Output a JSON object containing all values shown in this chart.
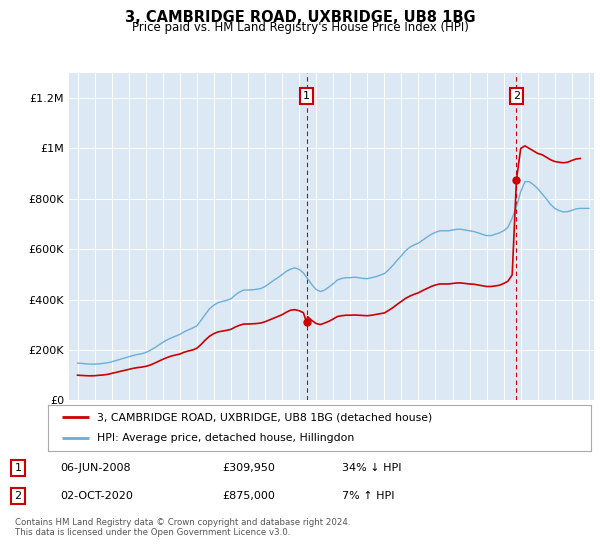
{
  "title": "3, CAMBRIDGE ROAD, UXBRIDGE, UB8 1BG",
  "subtitle": "Price paid vs. HM Land Registry's House Price Index (HPI)",
  "footer": "Contains HM Land Registry data © Crown copyright and database right 2024.\nThis data is licensed under the Open Government Licence v3.0.",
  "legend_entries": [
    "3, CAMBRIDGE ROAD, UXBRIDGE, UB8 1BG (detached house)",
    "HPI: Average price, detached house, Hillingdon"
  ],
  "sale1": {
    "label": "1",
    "date": "06-JUN-2008",
    "price": "£309,950",
    "change": "34% ↓ HPI"
  },
  "sale2": {
    "label": "2",
    "date": "02-OCT-2020",
    "price": "£875,000",
    "change": "7% ↑ HPI"
  },
  "hpi_color": "#6baed6",
  "price_color": "#cc0000",
  "background_color": "#dce9f5",
  "ylim": [
    0,
    1300000
  ],
  "yticks": [
    0,
    200000,
    400000,
    600000,
    800000,
    1000000,
    1200000
  ],
  "ytick_labels": [
    "£0",
    "£200K",
    "£400K",
    "£600K",
    "£800K",
    "£1M",
    "£1.2M"
  ],
  "year_start": 1995,
  "year_end": 2025,
  "sale1_year": 2008.44,
  "sale1_price": 309950,
  "sale2_year": 2020.75,
  "sale2_price": 875000,
  "hpi_data": [
    [
      1995.0,
      148000
    ],
    [
      1995.25,
      147000
    ],
    [
      1995.5,
      145000
    ],
    [
      1995.75,
      144000
    ],
    [
      1996.0,
      144000
    ],
    [
      1996.25,
      145000
    ],
    [
      1996.5,
      147000
    ],
    [
      1996.75,
      149000
    ],
    [
      1997.0,
      153000
    ],
    [
      1997.25,
      158000
    ],
    [
      1997.5,
      163000
    ],
    [
      1997.75,
      168000
    ],
    [
      1998.0,
      173000
    ],
    [
      1998.25,
      178000
    ],
    [
      1998.5,
      182000
    ],
    [
      1998.75,
      185000
    ],
    [
      1999.0,
      190000
    ],
    [
      1999.25,
      198000
    ],
    [
      1999.5,
      208000
    ],
    [
      1999.75,
      219000
    ],
    [
      2000.0,
      230000
    ],
    [
      2000.25,
      240000
    ],
    [
      2000.5,
      248000
    ],
    [
      2000.75,
      255000
    ],
    [
      2001.0,
      262000
    ],
    [
      2001.25,
      272000
    ],
    [
      2001.5,
      280000
    ],
    [
      2001.75,
      287000
    ],
    [
      2002.0,
      296000
    ],
    [
      2002.25,
      318000
    ],
    [
      2002.5,
      342000
    ],
    [
      2002.75,
      364000
    ],
    [
      2003.0,
      378000
    ],
    [
      2003.25,
      388000
    ],
    [
      2003.5,
      393000
    ],
    [
      2003.75,
      397000
    ],
    [
      2004.0,
      403000
    ],
    [
      2004.25,
      418000
    ],
    [
      2004.5,
      430000
    ],
    [
      2004.75,
      438000
    ],
    [
      2005.0,
      438000
    ],
    [
      2005.25,
      439000
    ],
    [
      2005.5,
      441000
    ],
    [
      2005.75,
      444000
    ],
    [
      2006.0,
      452000
    ],
    [
      2006.25,
      464000
    ],
    [
      2006.5,
      476000
    ],
    [
      2006.75,
      487000
    ],
    [
      2007.0,
      499000
    ],
    [
      2007.25,
      512000
    ],
    [
      2007.5,
      521000
    ],
    [
      2007.75,
      526000
    ],
    [
      2008.0,
      520000
    ],
    [
      2008.25,
      506000
    ],
    [
      2008.5,
      483000
    ],
    [
      2008.75,
      459000
    ],
    [
      2009.0,
      440000
    ],
    [
      2009.25,
      432000
    ],
    [
      2009.5,
      438000
    ],
    [
      2009.75,
      450000
    ],
    [
      2010.0,
      463000
    ],
    [
      2010.25,
      478000
    ],
    [
      2010.5,
      484000
    ],
    [
      2010.75,
      487000
    ],
    [
      2011.0,
      487000
    ],
    [
      2011.25,
      489000
    ],
    [
      2011.5,
      487000
    ],
    [
      2011.75,
      484000
    ],
    [
      2012.0,
      483000
    ],
    [
      2012.25,
      487000
    ],
    [
      2012.5,
      491000
    ],
    [
      2012.75,
      497000
    ],
    [
      2013.0,
      503000
    ],
    [
      2013.25,
      518000
    ],
    [
      2013.5,
      536000
    ],
    [
      2013.75,
      556000
    ],
    [
      2014.0,
      574000
    ],
    [
      2014.25,
      594000
    ],
    [
      2014.5,
      608000
    ],
    [
      2014.75,
      617000
    ],
    [
      2015.0,
      624000
    ],
    [
      2015.25,
      636000
    ],
    [
      2015.5,
      648000
    ],
    [
      2015.75,
      659000
    ],
    [
      2016.0,
      667000
    ],
    [
      2016.25,
      673000
    ],
    [
      2016.5,
      673000
    ],
    [
      2016.75,
      673000
    ],
    [
      2017.0,
      676000
    ],
    [
      2017.25,
      679000
    ],
    [
      2017.5,
      679000
    ],
    [
      2017.75,
      676000
    ],
    [
      2018.0,
      673000
    ],
    [
      2018.25,
      670000
    ],
    [
      2018.5,
      665000
    ],
    [
      2018.75,
      659000
    ],
    [
      2019.0,
      654000
    ],
    [
      2019.25,
      654000
    ],
    [
      2019.5,
      659000
    ],
    [
      2019.75,
      665000
    ],
    [
      2020.0,
      673000
    ],
    [
      2020.25,
      687000
    ],
    [
      2020.5,
      723000
    ],
    [
      2020.75,
      768000
    ],
    [
      2021.0,
      828000
    ],
    [
      2021.25,
      868000
    ],
    [
      2021.5,
      868000
    ],
    [
      2021.75,
      856000
    ],
    [
      2022.0,
      840000
    ],
    [
      2022.25,
      820000
    ],
    [
      2022.5,
      800000
    ],
    [
      2022.75,
      778000
    ],
    [
      2023.0,
      762000
    ],
    [
      2023.25,
      753000
    ],
    [
      2023.5,
      748000
    ],
    [
      2023.75,
      749000
    ],
    [
      2024.0,
      754000
    ],
    [
      2024.25,
      760000
    ],
    [
      2024.5,
      762000
    ],
    [
      2024.75,
      762000
    ],
    [
      2025.0,
      762000
    ]
  ],
  "price_data": [
    [
      1995.0,
      100000
    ],
    [
      1995.25,
      99000
    ],
    [
      1995.5,
      98000
    ],
    [
      1995.75,
      97500
    ],
    [
      1996.0,
      98000
    ],
    [
      1996.25,
      99500
    ],
    [
      1996.5,
      101000
    ],
    [
      1996.75,
      103000
    ],
    [
      1997.0,
      107000
    ],
    [
      1997.25,
      111000
    ],
    [
      1997.5,
      115000
    ],
    [
      1997.75,
      119000
    ],
    [
      1998.0,
      123000
    ],
    [
      1998.25,
      127000
    ],
    [
      1998.5,
      130000
    ],
    [
      1998.75,
      132000
    ],
    [
      1999.0,
      135000
    ],
    [
      1999.25,
      140000
    ],
    [
      1999.5,
      147000
    ],
    [
      1999.75,
      155000
    ],
    [
      2000.0,
      163000
    ],
    [
      2000.25,
      170000
    ],
    [
      2000.5,
      176000
    ],
    [
      2000.75,
      180000
    ],
    [
      2001.0,
      184000
    ],
    [
      2001.25,
      191000
    ],
    [
      2001.5,
      196000
    ],
    [
      2001.75,
      200000
    ],
    [
      2002.0,
      207000
    ],
    [
      2002.25,
      222000
    ],
    [
      2002.5,
      240000
    ],
    [
      2002.75,
      255000
    ],
    [
      2003.0,
      265000
    ],
    [
      2003.25,
      272000
    ],
    [
      2003.5,
      275000
    ],
    [
      2003.75,
      278000
    ],
    [
      2004.0,
      282000
    ],
    [
      2004.25,
      291000
    ],
    [
      2004.5,
      298000
    ],
    [
      2004.75,
      303000
    ],
    [
      2005.0,
      303000
    ],
    [
      2005.25,
      304000
    ],
    [
      2005.5,
      305000
    ],
    [
      2005.75,
      307000
    ],
    [
      2006.0,
      312000
    ],
    [
      2006.25,
      319000
    ],
    [
      2006.5,
      326000
    ],
    [
      2006.75,
      333000
    ],
    [
      2007.0,
      340000
    ],
    [
      2007.25,
      350000
    ],
    [
      2007.5,
      358000
    ],
    [
      2007.75,
      360000
    ],
    [
      2008.0,
      356000
    ],
    [
      2008.25,
      348000
    ],
    [
      2008.44,
      309950
    ],
    [
      2008.5,
      332000
    ],
    [
      2008.75,
      317000
    ],
    [
      2009.0,
      305000
    ],
    [
      2009.25,
      301000
    ],
    [
      2009.5,
      307000
    ],
    [
      2009.75,
      314000
    ],
    [
      2010.0,
      323000
    ],
    [
      2010.25,
      333000
    ],
    [
      2010.5,
      336000
    ],
    [
      2010.75,
      338000
    ],
    [
      2011.0,
      338000
    ],
    [
      2011.25,
      339000
    ],
    [
      2011.5,
      338000
    ],
    [
      2011.75,
      337000
    ],
    [
      2012.0,
      336000
    ],
    [
      2012.25,
      338000
    ],
    [
      2012.5,
      341000
    ],
    [
      2012.75,
      344000
    ],
    [
      2013.0,
      347000
    ],
    [
      2013.25,
      357000
    ],
    [
      2013.5,
      368000
    ],
    [
      2013.75,
      381000
    ],
    [
      2014.0,
      393000
    ],
    [
      2014.25,
      405000
    ],
    [
      2014.5,
      414000
    ],
    [
      2014.75,
      421000
    ],
    [
      2015.0,
      427000
    ],
    [
      2015.25,
      436000
    ],
    [
      2015.5,
      444000
    ],
    [
      2015.75,
      452000
    ],
    [
      2016.0,
      458000
    ],
    [
      2016.25,
      462000
    ],
    [
      2016.5,
      462000
    ],
    [
      2016.75,
      462000
    ],
    [
      2017.0,
      464000
    ],
    [
      2017.25,
      466000
    ],
    [
      2017.5,
      466000
    ],
    [
      2017.75,
      464000
    ],
    [
      2018.0,
      462000
    ],
    [
      2018.25,
      461000
    ],
    [
      2018.5,
      458000
    ],
    [
      2018.75,
      455000
    ],
    [
      2019.0,
      452000
    ],
    [
      2019.25,
      452000
    ],
    [
      2019.5,
      454000
    ],
    [
      2019.75,
      457000
    ],
    [
      2020.0,
      464000
    ],
    [
      2020.25,
      473000
    ],
    [
      2020.5,
      498000
    ],
    [
      2020.75,
      875000
    ],
    [
      2021.0,
      1000000
    ],
    [
      2021.25,
      1010000
    ],
    [
      2021.5,
      1000000
    ],
    [
      2021.75,
      990000
    ],
    [
      2022.0,
      980000
    ],
    [
      2022.25,
      975000
    ],
    [
      2022.5,
      965000
    ],
    [
      2022.75,
      955000
    ],
    [
      2023.0,
      948000
    ],
    [
      2023.25,
      945000
    ],
    [
      2023.5,
      943000
    ],
    [
      2023.75,
      945000
    ],
    [
      2024.0,
      952000
    ],
    [
      2024.25,
      958000
    ],
    [
      2024.5,
      960000
    ]
  ]
}
